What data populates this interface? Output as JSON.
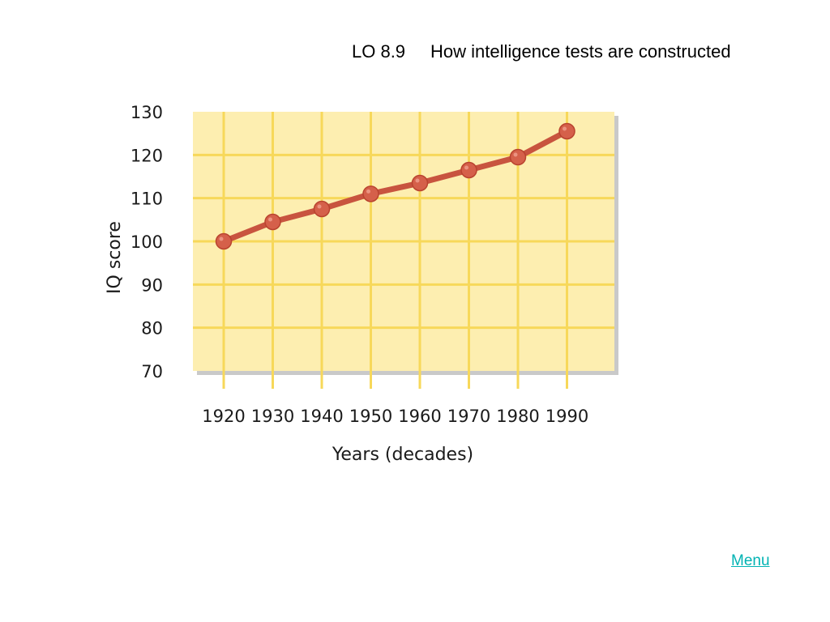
{
  "slide": {
    "lo_code": "LO 8.9",
    "title": "How intelligence tests are constructed"
  },
  "menu": {
    "label": "Menu"
  },
  "colors": {
    "plot_background": "#fdeeb0",
    "grid": "#f7d85a",
    "line": "#c8543f",
    "marker": "#d5604a",
    "shadow": "#c9c9c9",
    "link": "#00b3b3"
  },
  "chart_data": {
    "type": "line",
    "title": "",
    "xlabel": "Years (decades)",
    "ylabel": "IQ score",
    "categories": [
      "1920",
      "1930",
      "1940",
      "1950",
      "1960",
      "1970",
      "1980",
      "1990"
    ],
    "series": [
      {
        "values": [
          100,
          104.5,
          107.5,
          111,
          113.5,
          116.5,
          119.5,
          125.5
        ]
      }
    ],
    "ylim": [
      70,
      130
    ],
    "yticks": [
      70,
      80,
      90,
      100,
      110,
      120,
      130
    ],
    "grid": true,
    "legend": "none"
  }
}
